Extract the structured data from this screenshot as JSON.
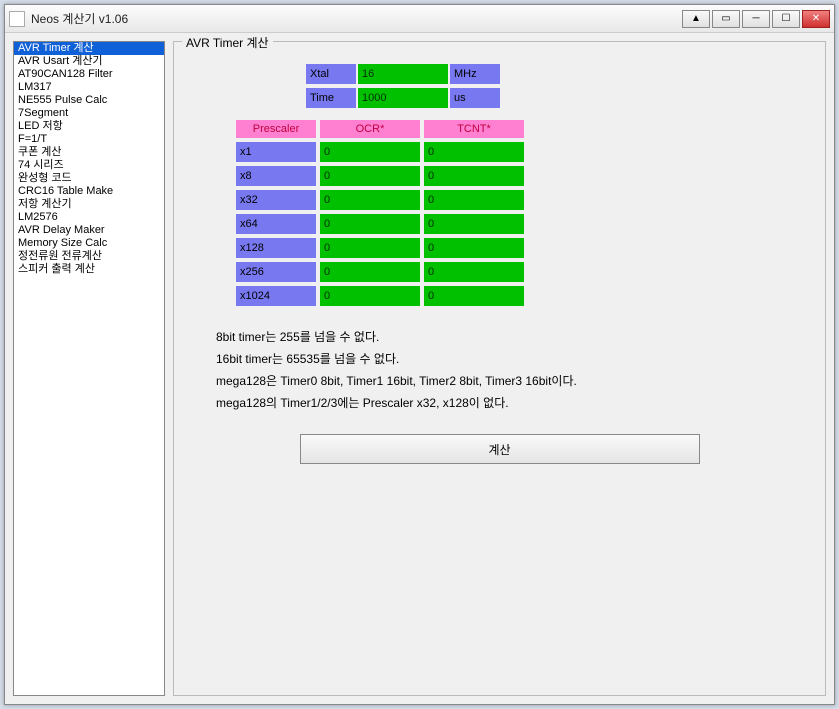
{
  "window": {
    "title": "Neos 계산기 v1.06"
  },
  "sidebar": {
    "items": [
      "AVR Timer 계산",
      "AVR Usart 계산기",
      "AT90CAN128 Filter",
      "LM317",
      "NE555 Pulse Calc",
      "7Segment",
      "LED 저항",
      "F=1/T",
      "쿠폰 계산",
      "74 시리즈",
      "완성형 코드",
      "CRC16 Table Make",
      "저항 계산기",
      "LM2576",
      "AVR Delay Maker",
      "Memory Size Calc",
      "정전류원 전류계산",
      "스피커 출력 계산"
    ],
    "selected_index": 0
  },
  "panel": {
    "legend": "AVR Timer 계산",
    "inputs": {
      "xtal_label": "Xtal",
      "xtal_value": "16",
      "xtal_unit": "MHz",
      "time_label": "Time",
      "time_value": "1000",
      "time_unit": "us"
    },
    "headers": {
      "prescaler": "Prescaler",
      "ocr": "OCR*",
      "tcnt": "TCNT*"
    },
    "rows": [
      {
        "prescaler": "x1",
        "ocr": "0",
        "tcnt": "0"
      },
      {
        "prescaler": "x8",
        "ocr": "0",
        "tcnt": "0"
      },
      {
        "prescaler": "x32",
        "ocr": "0",
        "tcnt": "0"
      },
      {
        "prescaler": "x64",
        "ocr": "0",
        "tcnt": "0"
      },
      {
        "prescaler": "x128",
        "ocr": "0",
        "tcnt": "0"
      },
      {
        "prescaler": "x256",
        "ocr": "0",
        "tcnt": "0"
      },
      {
        "prescaler": "x1024",
        "ocr": "0",
        "tcnt": "0"
      }
    ],
    "notes": [
      "8bit timer는 255를 넘을 수 없다.",
      "16bit timer는 65535를 넘을 수 없다.",
      "mega128은 Timer0 8bit, Timer1 16bit, Timer2 8bit, Timer3 16bit이다.",
      "mega128의 Timer1/2/3에는 Prescaler x32, x128이 없다."
    ],
    "calc_button": "계산"
  },
  "colors": {
    "label_blue": "#7878f0",
    "input_green": "#00c000",
    "header_pink": "#ff80d0",
    "selection": "#1060d8",
    "window_bg": "#f0f0f0"
  }
}
